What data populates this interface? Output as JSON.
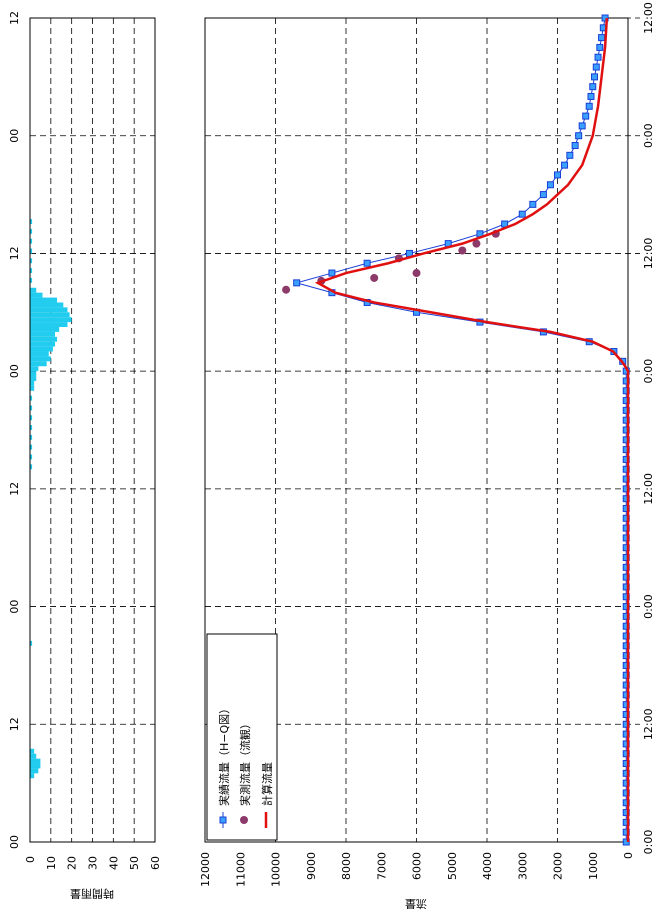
{
  "chart_data": [
    {
      "type": "bar",
      "title": "",
      "ylabel": "時間雨量",
      "ylim": [
        0,
        60
      ],
      "y_ticks": [
        "0",
        "10",
        "20",
        "30",
        "40",
        "50",
        "60"
      ],
      "time_ticks": [
        "00",
        "12",
        "00",
        "12",
        "00",
        "12",
        "00",
        "12"
      ],
      "x_hours_range": [
        0,
        84
      ],
      "bars": [
        {
          "t": 6.5,
          "v": 2
        },
        {
          "t": 7.0,
          "v": 4
        },
        {
          "t": 7.5,
          "v": 5
        },
        {
          "t": 8.0,
          "v": 5
        },
        {
          "t": 8.5,
          "v": 3
        },
        {
          "t": 9.0,
          "v": 2
        },
        {
          "t": 20.0,
          "v": 1
        },
        {
          "t": 38.0,
          "v": 1
        },
        {
          "t": 39.0,
          "v": 1
        },
        {
          "t": 40.0,
          "v": 1
        },
        {
          "t": 41.0,
          "v": 1
        },
        {
          "t": 42.0,
          "v": 1
        },
        {
          "t": 43.0,
          "v": 1
        },
        {
          "t": 44.0,
          "v": 1
        },
        {
          "t": 45.0,
          "v": 1
        },
        {
          "t": 46.0,
          "v": 2
        },
        {
          "t": 46.5,
          "v": 2
        },
        {
          "t": 47.0,
          "v": 3
        },
        {
          "t": 47.5,
          "v": 3
        },
        {
          "t": 48.0,
          "v": 4
        },
        {
          "t": 48.5,
          "v": 8
        },
        {
          "t": 49.0,
          "v": 10
        },
        {
          "t": 49.5,
          "v": 9
        },
        {
          "t": 50.0,
          "v": 11
        },
        {
          "t": 50.5,
          "v": 12
        },
        {
          "t": 51.0,
          "v": 13
        },
        {
          "t": 51.5,
          "v": 12
        },
        {
          "t": 52.0,
          "v": 14
        },
        {
          "t": 52.5,
          "v": 18
        },
        {
          "t": 53.0,
          "v": 20
        },
        {
          "t": 53.5,
          "v": 19
        },
        {
          "t": 54.0,
          "v": 18
        },
        {
          "t": 54.5,
          "v": 16
        },
        {
          "t": 55.0,
          "v": 13
        },
        {
          "t": 55.5,
          "v": 6
        },
        {
          "t": 56.0,
          "v": 3
        },
        {
          "t": 57.0,
          "v": 1
        },
        {
          "t": 58.0,
          "v": 1
        },
        {
          "t": 59.0,
          "v": 1
        },
        {
          "t": 60.0,
          "v": 1
        },
        {
          "t": 61.0,
          "v": 1
        },
        {
          "t": 62.0,
          "v": 1
        },
        {
          "t": 63.0,
          "v": 1
        }
      ],
      "bar_color": "#22ccee"
    },
    {
      "type": "line",
      "title": "",
      "ylabel": "流量",
      "ylim": [
        0,
        12000
      ],
      "y_ticks": [
        "0",
        "1000",
        "2000",
        "3000",
        "4000",
        "5000",
        "6000",
        "7000",
        "8000",
        "9000",
        "10000",
        "11000",
        "12000"
      ],
      "time_ticks": [
        "0:00",
        "12:00",
        "0:00",
        "12:00",
        "0:00",
        "12:00",
        "0:00",
        "12:00",
        "0:00"
      ],
      "x_hours_range": [
        0,
        84
      ],
      "legend": {
        "placement": "bottom-left",
        "items": [
          "実績流量（H−Q図）",
          "実測流量（流観）",
          "計算流量"
        ]
      },
      "series": [
        {
          "name": "実績流量（H−Q図）",
          "color": "#1a3fd6",
          "marker": "square",
          "points": [
            [
              0,
              50
            ],
            [
              1,
              50
            ],
            [
              2,
              50
            ],
            [
              3,
              50
            ],
            [
              4,
              50
            ],
            [
              5,
              50
            ],
            [
              6,
              50
            ],
            [
              7,
              50
            ],
            [
              8,
              50
            ],
            [
              9,
              50
            ],
            [
              10,
              50
            ],
            [
              11,
              50
            ],
            [
              12,
              50
            ],
            [
              13,
              50
            ],
            [
              14,
              50
            ],
            [
              15,
              50
            ],
            [
              16,
              50
            ],
            [
              17,
              50
            ],
            [
              18,
              50
            ],
            [
              19,
              50
            ],
            [
              20,
              50
            ],
            [
              21,
              50
            ],
            [
              22,
              50
            ],
            [
              23,
              50
            ],
            [
              24,
              50
            ],
            [
              25,
              50
            ],
            [
              26,
              50
            ],
            [
              27,
              50
            ],
            [
              28,
              50
            ],
            [
              29,
              50
            ],
            [
              30,
              50
            ],
            [
              31,
              50
            ],
            [
              32,
              50
            ],
            [
              33,
              50
            ],
            [
              34,
              50
            ],
            [
              35,
              50
            ],
            [
              36,
              50
            ],
            [
              37,
              50
            ],
            [
              38,
              50
            ],
            [
              39,
              50
            ],
            [
              40,
              50
            ],
            [
              41,
              50
            ],
            [
              42,
              50
            ],
            [
              43,
              50
            ],
            [
              44,
              50
            ],
            [
              45,
              50
            ],
            [
              46,
              50
            ],
            [
              47,
              50
            ],
            [
              48,
              50
            ],
            [
              49,
              150
            ],
            [
              50,
              400
            ],
            [
              51,
              1100
            ],
            [
              52,
              2400
            ],
            [
              53,
              4200
            ],
            [
              54,
              6000
            ],
            [
              55,
              7400
            ],
            [
              56,
              8400
            ],
            [
              57,
              9400
            ],
            [
              58,
              8400
            ],
            [
              59,
              7400
            ],
            [
              60,
              6200
            ],
            [
              61,
              5100
            ],
            [
              62,
              4200
            ],
            [
              63,
              3500
            ],
            [
              64,
              3000
            ],
            [
              65,
              2700
            ],
            [
              66,
              2400
            ],
            [
              67,
              2200
            ],
            [
              68,
              2000
            ],
            [
              69,
              1800
            ],
            [
              70,
              1650
            ],
            [
              71,
              1500
            ],
            [
              72,
              1400
            ],
            [
              73,
              1300
            ],
            [
              74,
              1200
            ],
            [
              75,
              1100
            ],
            [
              76,
              1050
            ],
            [
              77,
              1000
            ],
            [
              78,
              950
            ],
            [
              79,
              900
            ],
            [
              80,
              850
            ],
            [
              81,
              800
            ],
            [
              82,
              750
            ],
            [
              83,
              700
            ],
            [
              84,
              650
            ]
          ]
        },
        {
          "name": "実測流量（流観）",
          "color": "#8b3a6a",
          "marker": "circle",
          "points": [
            [
              56.3,
              9700
            ],
            [
              59.5,
              6500
            ],
            [
              62.0,
              3750
            ],
            [
              61.0,
              4300
            ],
            [
              60.3,
              4700
            ],
            [
              57.2,
              8700
            ],
            [
              57.5,
              7200
            ],
            [
              58.0,
              6000
            ]
          ]
        },
        {
          "name": "計算流量",
          "color": "#e01010",
          "marker": "none",
          "points": [
            [
              0,
              0
            ],
            [
              10,
              0
            ],
            [
              20,
              0
            ],
            [
              30,
              0
            ],
            [
              40,
              0
            ],
            [
              45,
              0
            ],
            [
              48,
              0
            ],
            [
              48.5,
              80
            ],
            [
              49,
              180
            ],
            [
              50,
              420
            ],
            [
              51,
              1000
            ],
            [
              52,
              2200
            ],
            [
              53,
              4000
            ],
            [
              54,
              5600
            ],
            [
              55,
              7200
            ],
            [
              56,
              8300
            ],
            [
              57,
              8800
            ],
            [
              58,
              8000
            ],
            [
              59,
              6800
            ],
            [
              60,
              5800
            ],
            [
              61,
              4700
            ],
            [
              62,
              3900
            ],
            [
              63,
              3200
            ],
            [
              64,
              2700
            ],
            [
              65,
              2300
            ],
            [
              66,
              2000
            ],
            [
              67,
              1700
            ],
            [
              68,
              1500
            ],
            [
              69,
              1300
            ],
            [
              70,
              1200
            ],
            [
              72,
              1000
            ],
            [
              75,
              850
            ],
            [
              78,
              750
            ],
            [
              81,
              650
            ],
            [
              84,
              600
            ]
          ]
        }
      ]
    }
  ]
}
